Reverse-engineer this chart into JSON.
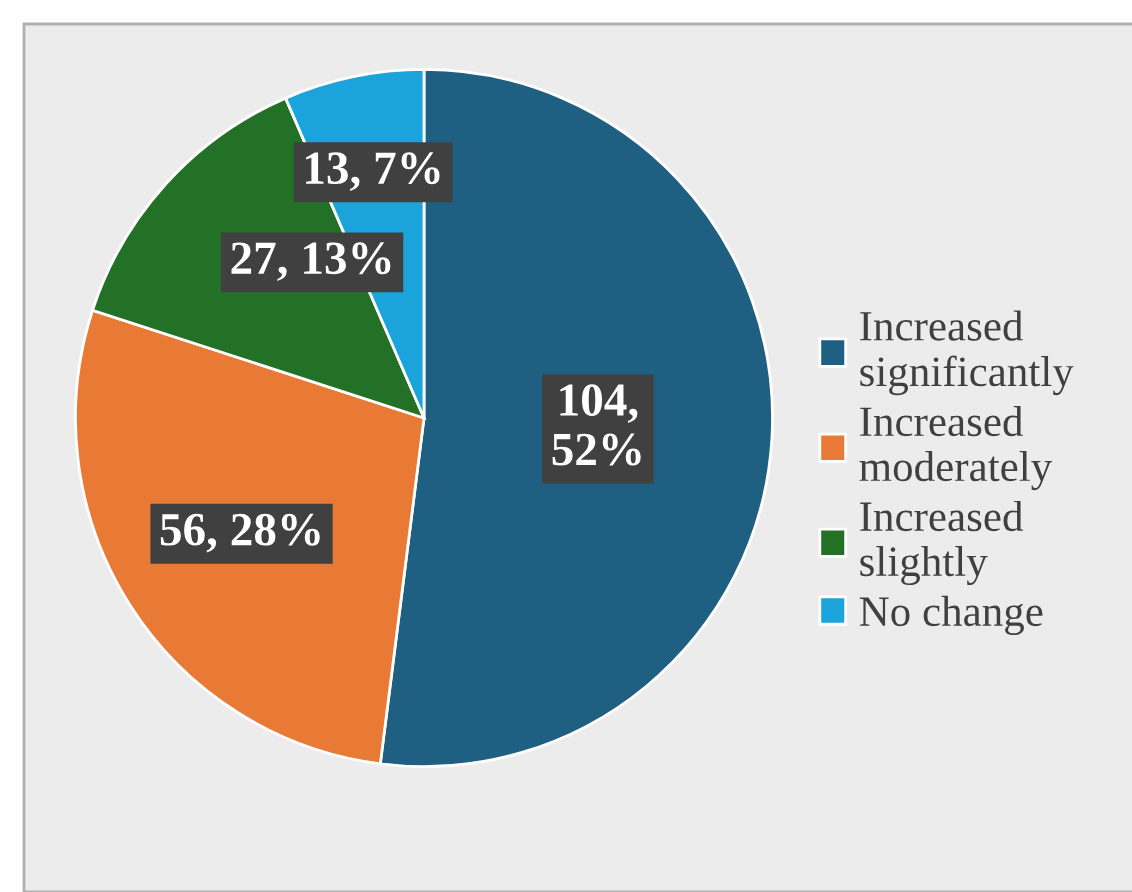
{
  "chart_data": {
    "type": "pie",
    "categories": [
      "Increased\nsignificantly",
      "Increased\nmoderately",
      "Increased\nslightly",
      "No change"
    ],
    "values": [
      104,
      56,
      27,
      13
    ],
    "colors": [
      "#1f5f82",
      "#e97a35",
      "#237127",
      "#1ba3db"
    ],
    "value_labels": [
      "104,\n52%",
      "56, 28%",
      "27, 13%",
      "13, 7%"
    ],
    "legend": "right"
  }
}
